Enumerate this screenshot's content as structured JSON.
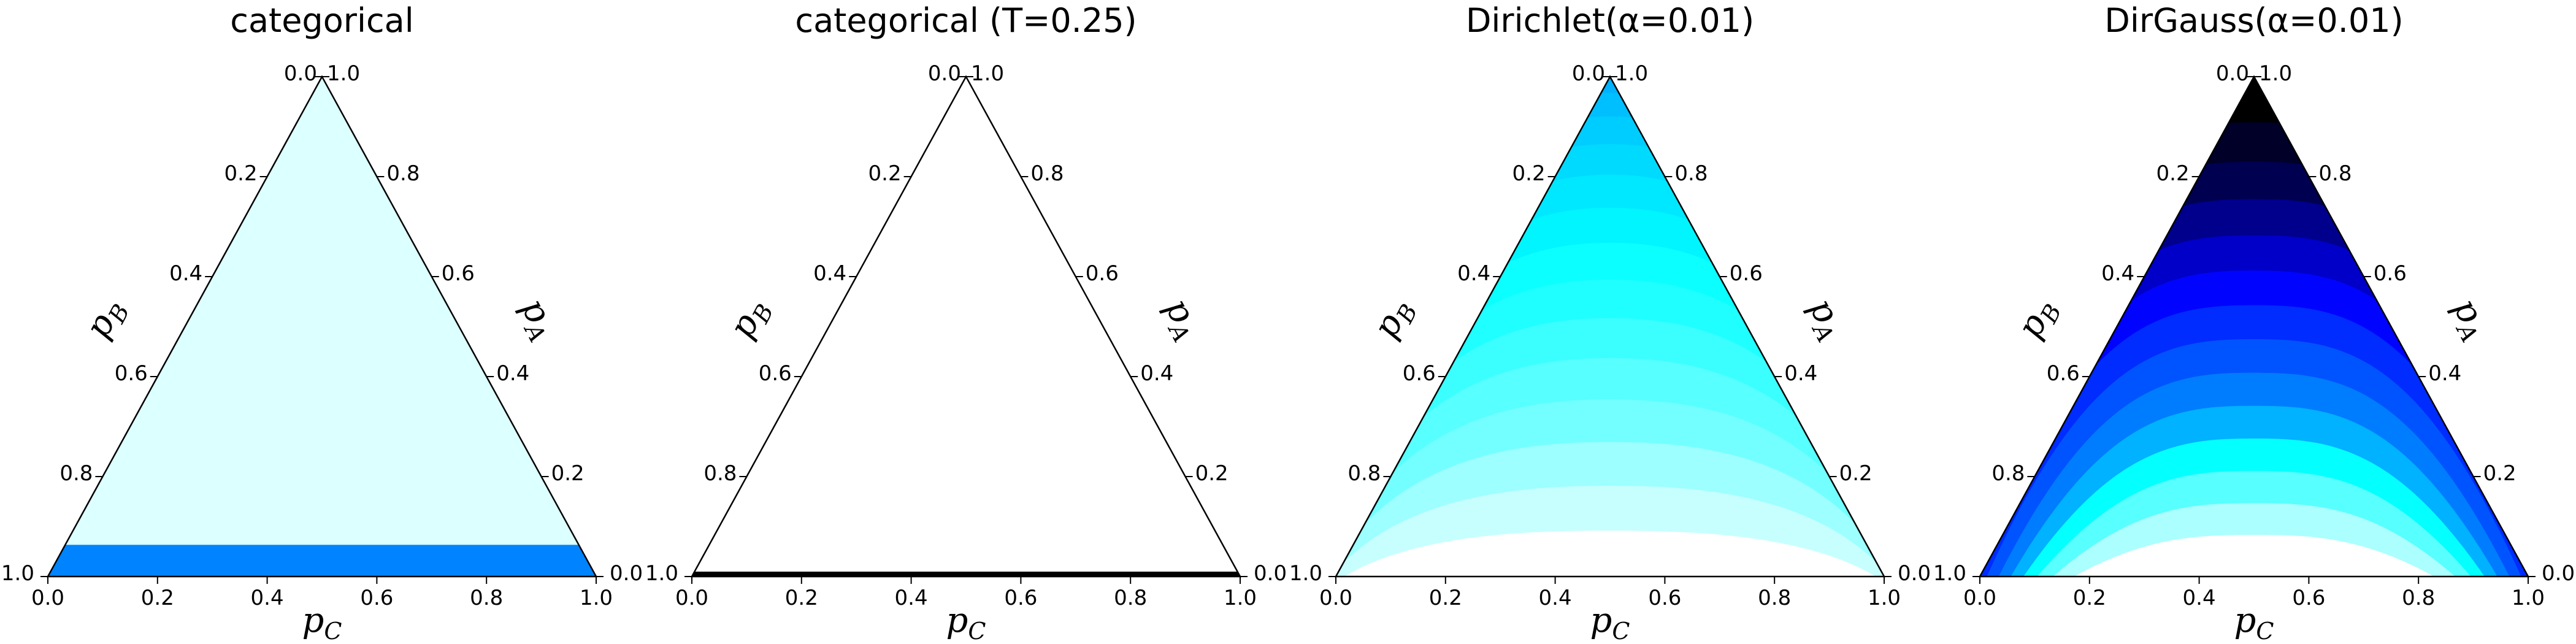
{
  "chart_data": [
    {
      "type": "ternary-contour",
      "title": "categorical",
      "axes": {
        "left_label": "p",
        "left_sub": "B",
        "right_label": "p",
        "right_sub": "A",
        "bottom_label": "p",
        "bottom_sub": "C",
        "range": [
          0,
          1
        ],
        "ticks": [
          "0.0",
          "0.2",
          "0.4",
          "0.6",
          "0.8",
          "1.0"
        ],
        "grid": false
      },
      "colormap": "hot_r",
      "contour_levels": [
        0.95,
        0.9,
        0.85,
        0.8,
        0.75,
        0.7,
        0.65,
        0.6,
        0.55,
        0.5,
        0.45
      ],
      "density_min_value": 0.45
    },
    {
      "type": "ternary-contour",
      "title": "categorical (T=0.25)",
      "axes": {
        "left_label": "p",
        "left_sub": "B",
        "right_label": "p",
        "right_sub": "A",
        "bottom_label": "p",
        "bottom_sub": "C",
        "range": [
          0,
          1
        ],
        "ticks": [
          "0.0",
          "0.2",
          "0.4",
          "0.6",
          "0.8",
          "1.0"
        ],
        "grid": false
      },
      "colormap": "hot_r",
      "contour_levels": [
        1.0,
        0.9,
        0.8,
        0.7,
        0.6,
        0.55,
        0.5,
        0.45,
        0.4,
        0.35,
        0.3,
        0.25,
        0.2,
        0.16,
        0.12,
        0.08,
        0.04,
        0.0
      ],
      "density_min_value": 0.0
    },
    {
      "type": "ternary-contour",
      "title": "Dirichlet(α=0.01)",
      "axes": {
        "left_label": "p",
        "left_sub": "B",
        "right_label": "p",
        "right_sub": "A",
        "bottom_label": "p",
        "bottom_sub": "C",
        "range": [
          0,
          1
        ],
        "ticks": [
          "0.0",
          "0.2",
          "0.4",
          "0.6",
          "0.8",
          "1.0"
        ],
        "grid": false
      },
      "colormap": "hot_r",
      "contour_levels": [
        1.0,
        0.92,
        0.86,
        0.8,
        0.76,
        0.72,
        0.68,
        0.65,
        0.62,
        0.6,
        0.58,
        0.56,
        0.54,
        0.52
      ],
      "density_min_value": 0.52
    },
    {
      "type": "ternary-contour",
      "title": "DirGauss(α=0.01)",
      "axes": {
        "left_label": "p",
        "left_sub": "B",
        "right_label": "p",
        "right_sub": "A",
        "bottom_label": "p",
        "bottom_sub": "C",
        "range": [
          0,
          1
        ],
        "ticks": [
          "0.0",
          "0.2",
          "0.4",
          "0.6",
          "0.8",
          "1.0"
        ],
        "grid": false
      },
      "colormap": "hot_r",
      "contour_levels": [
        1.0,
        0.88,
        0.76,
        0.64,
        0.52,
        0.44,
        0.38,
        0.32,
        0.26,
        0.2,
        0.14,
        0.08,
        0.04,
        0.0
      ],
      "density_min_value": 0.0
    }
  ]
}
